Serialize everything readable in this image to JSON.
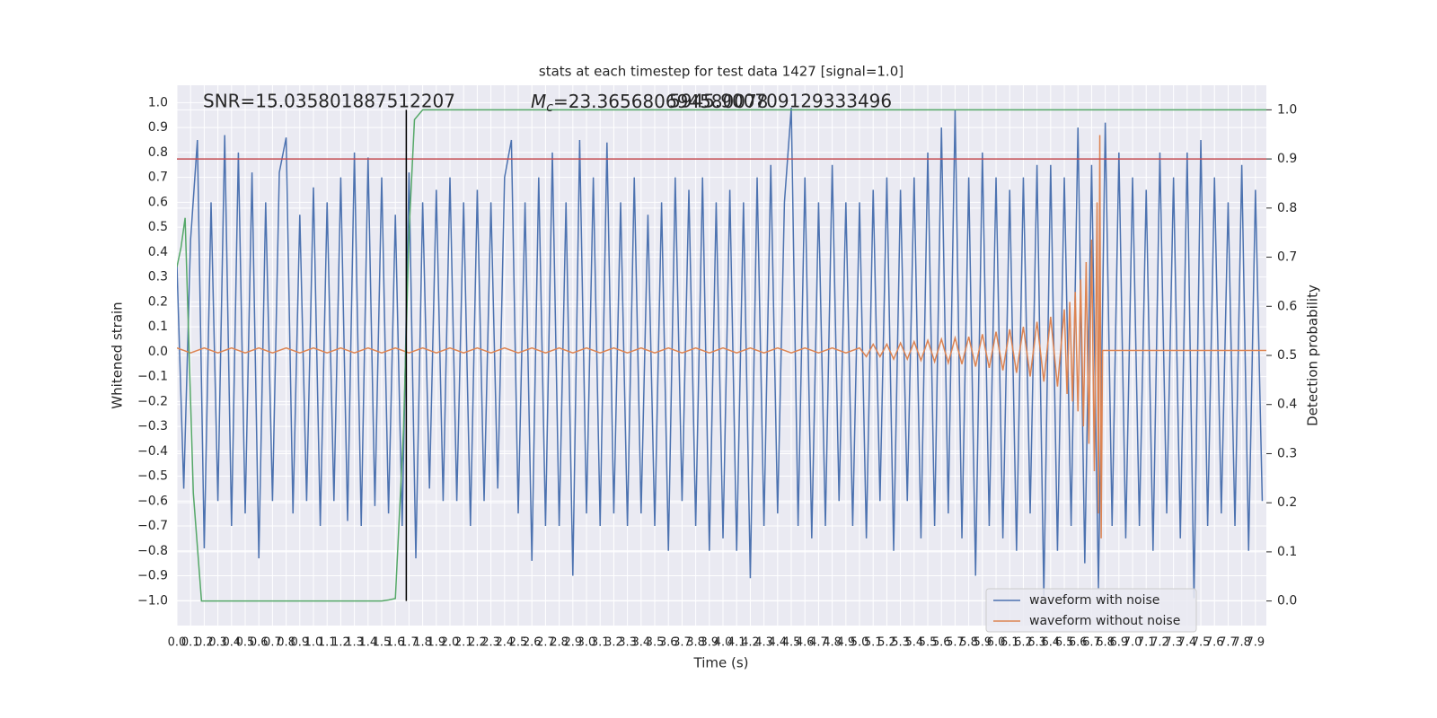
{
  "chart_data": {
    "type": "line",
    "title": "stats at each timestep for test data 1427 [signal=1.0]",
    "xlabel": "Time (s)",
    "ylabel": "Whitened strain",
    "y2label": "Detection probability",
    "annotations": {
      "snr": "SNR=15.035801887512207",
      "chirp_mass": {
        "symbol": "M",
        "subscript": "c",
        "text": "=23.365680694580078"
      },
      "overlap": "5945.900709129333496"
    },
    "xlim": [
      0,
      7.98
    ],
    "ylim": [
      -1.1,
      1.07
    ],
    "y2lim": [
      -0.05,
      1.05
    ],
    "grid": true,
    "background": "#eaeaf2",
    "legend": "lower right",
    "xticks": [
      {
        "value": 0,
        "label": "0.0"
      },
      0.1,
      0.2,
      0.3,
      0.4,
      0.5,
      0.6,
      0.7,
      0.8,
      0.9,
      {
        "value": 1,
        "label": "1.0"
      },
      1.1,
      1.2,
      1.3,
      1.4,
      1.5,
      1.6,
      1.7,
      1.8,
      1.9,
      {
        "value": 2,
        "label": "2.0"
      },
      2.1,
      2.2,
      2.3,
      2.4,
      2.5,
      2.6,
      2.7,
      2.8,
      2.9,
      {
        "value": 3,
        "label": "3.0"
      },
      3.1,
      3.2,
      3.3,
      3.4,
      3.5,
      3.6,
      3.7,
      3.8,
      3.9,
      {
        "value": 4,
        "label": "4.0"
      },
      4.1,
      4.2,
      4.3,
      4.4,
      4.5,
      4.6,
      4.7,
      4.8,
      4.9,
      {
        "value": 5,
        "label": "5.0"
      },
      5.1,
      5.2,
      5.3,
      5.4,
      5.5,
      5.6,
      5.7,
      5.8,
      5.9,
      {
        "value": 6,
        "label": "6.0"
      },
      6.1,
      6.2,
      6.3,
      6.4,
      6.5,
      6.6,
      6.7,
      6.8,
      6.9,
      {
        "value": 7,
        "label": "7.0"
      },
      7.1,
      7.2,
      7.3,
      7.4,
      7.5,
      7.6,
      7.7,
      7.8,
      7.9
    ],
    "yticks": [
      {
        "value": -1,
        "label": "−1.0"
      },
      {
        "value": -0.9,
        "label": "−0.9"
      },
      {
        "value": -0.8,
        "label": "−0.8"
      },
      {
        "value": -0.7,
        "label": "−0.7"
      },
      {
        "value": -0.6,
        "label": "−0.6"
      },
      {
        "value": -0.5,
        "label": "−0.5"
      },
      {
        "value": -0.4,
        "label": "−0.4"
      },
      {
        "value": -0.3,
        "label": "−0.3"
      },
      {
        "value": -0.2,
        "label": "−0.2"
      },
      {
        "value": -0.1,
        "label": "−0.1"
      },
      {
        "value": 0,
        "label": "0.0"
      },
      0.1,
      0.2,
      0.3,
      0.4,
      0.5,
      0.6,
      0.7,
      0.8,
      0.9,
      {
        "value": 1,
        "label": "1.0"
      }
    ],
    "y2ticks": [
      {
        "value": 0,
        "label": "0.0"
      },
      0.1,
      0.2,
      0.3,
      0.4,
      0.5,
      0.6,
      0.7,
      0.8,
      0.9,
      {
        "value": 1,
        "label": "1.0"
      }
    ],
    "series": [
      {
        "name": "waveform with noise",
        "color": "#4c72b0",
        "x": [
          0,
          0.05,
          0.1,
          0.15,
          0.2,
          0.25,
          0.3,
          0.35,
          0.4,
          0.45,
          0.5,
          0.55,
          0.6,
          0.65,
          0.7,
          0.75,
          0.8,
          0.85,
          0.9,
          0.95,
          1,
          1.05,
          1.1,
          1.15,
          1.2,
          1.25,
          1.3,
          1.35,
          1.4,
          1.45,
          1.5,
          1.55,
          1.6,
          1.65,
          1.7,
          1.75,
          1.8,
          1.85,
          1.9,
          1.95,
          2,
          2.05,
          2.1,
          2.15,
          2.2,
          2.25,
          2.3,
          2.35,
          2.4,
          2.45,
          2.5,
          2.55,
          2.6,
          2.65,
          2.7,
          2.75,
          2.8,
          2.85,
          2.9,
          2.95,
          3,
          3.05,
          3.1,
          3.15,
          3.2,
          3.25,
          3.3,
          3.35,
          3.4,
          3.45,
          3.5,
          3.55,
          3.6,
          3.65,
          3.7,
          3.75,
          3.8,
          3.85,
          3.9,
          3.95,
          4,
          4.05,
          4.1,
          4.15,
          4.2,
          4.25,
          4.3,
          4.35,
          4.4,
          4.45,
          4.5,
          4.55,
          4.6,
          4.65,
          4.7,
          4.75,
          4.8,
          4.85,
          4.9,
          4.95,
          5,
          5.05,
          5.1,
          5.15,
          5.2,
          5.25,
          5.3,
          5.35,
          5.4,
          5.45,
          5.5,
          5.55,
          5.6,
          5.65,
          5.7,
          5.75,
          5.8,
          5.85,
          5.9,
          5.95,
          6,
          6.05,
          6.1,
          6.15,
          6.2,
          6.25,
          6.3,
          6.35,
          6.4,
          6.45,
          6.5,
          6.55,
          6.6,
          6.65,
          6.7,
          6.75,
          6.8,
          6.85,
          6.9,
          6.95,
          7,
          7.05,
          7.1,
          7.15,
          7.2,
          7.25,
          7.3,
          7.35,
          7.4,
          7.45,
          7.5,
          7.55,
          7.6,
          7.65,
          7.7,
          7.75,
          7.8,
          7.85,
          7.9,
          7.95
        ],
        "values": [
          0.35,
          -0.55,
          0.45,
          0.85,
          -0.79,
          0.6,
          -0.6,
          0.87,
          -0.7,
          0.8,
          -0.65,
          0.72,
          -0.83,
          0.6,
          -0.6,
          0.72,
          0.86,
          -0.65,
          0.55,
          -0.6,
          0.66,
          -0.7,
          0.6,
          -0.6,
          0.7,
          -0.68,
          0.8,
          -0.7,
          0.78,
          -0.62,
          0.7,
          -0.65,
          0.55,
          -0.7,
          0.72,
          -0.83,
          0.6,
          -0.55,
          0.65,
          -0.6,
          0.7,
          -0.6,
          0.6,
          -0.7,
          0.65,
          -0.6,
          0.6,
          -0.55,
          0.7,
          0.85,
          -0.65,
          0.6,
          -0.84,
          0.7,
          -0.7,
          0.8,
          -0.7,
          0.6,
          -0.9,
          0.85,
          -0.65,
          0.7,
          -0.7,
          0.84,
          -0.65,
          0.6,
          -0.7,
          0.7,
          -0.65,
          0.55,
          -0.7,
          0.6,
          -0.8,
          0.7,
          -0.6,
          0.65,
          -0.7,
          0.7,
          -0.8,
          0.6,
          -0.75,
          0.65,
          -0.8,
          0.6,
          -0.91,
          0.7,
          -0.7,
          0.75,
          -0.65,
          0.6,
          0.98,
          -0.7,
          0.7,
          -0.75,
          0.6,
          -0.7,
          0.75,
          -0.6,
          0.6,
          -0.7,
          0.6,
          -0.75,
          0.65,
          -0.6,
          0.7,
          -0.8,
          0.65,
          -0.6,
          0.7,
          -0.75,
          0.8,
          -0.7,
          0.9,
          -0.65,
          0.97,
          -0.75,
          0.7,
          -0.9,
          0.8,
          -0.7,
          0.7,
          -0.75,
          0.65,
          -0.8,
          0.7,
          -0.65,
          0.75,
          -0.98,
          0.75,
          -0.8,
          0.7,
          -0.7,
          0.9,
          -0.85,
          0.75,
          -0.95,
          0.92,
          -0.7,
          0.8,
          -0.75,
          0.7,
          -0.7,
          0.65,
          -0.8,
          0.8,
          -0.65,
          0.7,
          -0.75,
          0.8,
          -0.99,
          0.85,
          -0.7,
          0.7,
          -0.65,
          0.6,
          -0.7,
          0.75,
          -0.8,
          0.65,
          -0.6
        ]
      },
      {
        "name": "waveform without noise",
        "color": "#dd8452",
        "x": [
          0,
          0.1,
          0.2,
          0.3,
          0.4,
          0.5,
          0.6,
          0.7,
          0.8,
          0.9,
          1,
          1.1,
          1.2,
          1.3,
          1.4,
          1.5,
          1.6,
          1.7,
          1.8,
          1.9,
          2,
          2.1,
          2.2,
          2.3,
          2.4,
          2.5,
          2.6,
          2.7,
          2.8,
          2.9,
          3,
          3.1,
          3.2,
          3.3,
          3.4,
          3.5,
          3.6,
          3.7,
          3.8,
          3.9,
          4,
          4.1,
          4.2,
          4.3,
          4.4,
          4.5,
          4.6,
          4.7,
          4.8,
          4.9,
          5,
          5.05,
          5.1,
          5.15,
          5.2,
          5.25,
          5.3,
          5.35,
          5.4,
          5.45,
          5.5,
          5.55,
          5.6,
          5.65,
          5.7,
          5.75,
          5.8,
          5.85,
          5.9,
          5.95,
          6,
          6.05,
          6.1,
          6.15,
          6.2,
          6.25,
          6.3,
          6.35,
          6.4,
          6.45,
          6.5,
          6.52,
          6.54,
          6.56,
          6.58,
          6.6,
          6.62,
          6.64,
          6.66,
          6.68,
          6.7,
          6.72,
          6.74,
          6.75,
          6.76,
          6.77,
          6.78,
          7.98
        ],
        "values": [
          0.015,
          -0.005,
          0.015,
          -0.005,
          0.015,
          -0.005,
          0.015,
          -0.005,
          0.015,
          -0.005,
          0.015,
          -0.005,
          0.015,
          -0.005,
          0.015,
          -0.005,
          0.015,
          -0.005,
          0.015,
          -0.005,
          0.015,
          -0.005,
          0.015,
          -0.005,
          0.015,
          -0.005,
          0.015,
          -0.005,
          0.015,
          -0.005,
          0.015,
          -0.005,
          0.015,
          -0.005,
          0.015,
          -0.005,
          0.015,
          -0.005,
          0.015,
          -0.005,
          0.015,
          -0.005,
          0.015,
          -0.005,
          0.015,
          -0.005,
          0.015,
          -0.005,
          0.015,
          -0.005,
          0.015,
          -0.02,
          0.03,
          -0.02,
          0.03,
          -0.03,
          0.035,
          -0.03,
          0.04,
          -0.035,
          0.045,
          -0.04,
          0.05,
          -0.045,
          0.055,
          -0.05,
          0.06,
          -0.06,
          0.07,
          -0.065,
          0.08,
          -0.075,
          0.09,
          -0.085,
          0.1,
          -0.1,
          0.12,
          -0.12,
          0.14,
          -0.14,
          0.17,
          -0.17,
          0.2,
          -0.2,
          0.24,
          -0.24,
          0.29,
          -0.3,
          0.36,
          -0.37,
          0.45,
          -0.48,
          0.6,
          -0.65,
          0.87,
          -0.75,
          0.005,
          0.005
        ]
      }
    ],
    "detection_probability": {
      "axis": "y2",
      "color": "#55a868",
      "x": [
        0,
        0.03,
        0.06,
        0.12,
        0.18,
        0.5,
        1,
        1.5,
        1.55,
        1.6,
        1.66,
        1.7,
        1.74,
        1.8,
        7.98
      ],
      "values": [
        0.68,
        0.72,
        0.78,
        0.22,
        0,
        0,
        0,
        0,
        0.002,
        0.005,
        0.35,
        0.75,
        0.98,
        1,
        1
      ]
    },
    "threshold": {
      "axis": "y2",
      "value": 0.9,
      "color": "#c44e52"
    },
    "detection_marker": {
      "axis": "y2",
      "x": 1.68,
      "span": [
        0,
        1
      ],
      "color": "#000000"
    }
  }
}
